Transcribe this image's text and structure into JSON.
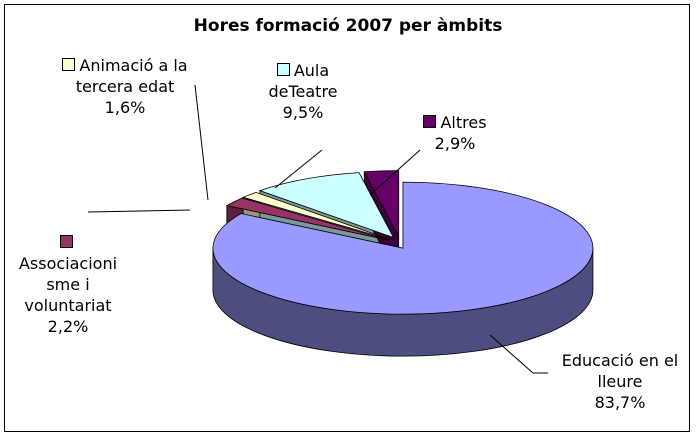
{
  "chart_data": {
    "type": "pie3d",
    "title": "Hores formació 2007 per àmbits",
    "categories": [
      "Educació en el lleure",
      "Associacionisme i voluntariat",
      "Animació a la tercera edat",
      "Aula deTeatre",
      "Altres"
    ],
    "values": [
      83.7,
      2.2,
      1.6,
      9.5,
      2.9
    ],
    "value_labels": [
      "83,7%",
      "2,2%",
      "1,6%",
      "9,5%",
      "2,9%"
    ],
    "colors": [
      "#9999ff",
      "#993366",
      "#ffffcc",
      "#ccffff",
      "#660066"
    ]
  }
}
